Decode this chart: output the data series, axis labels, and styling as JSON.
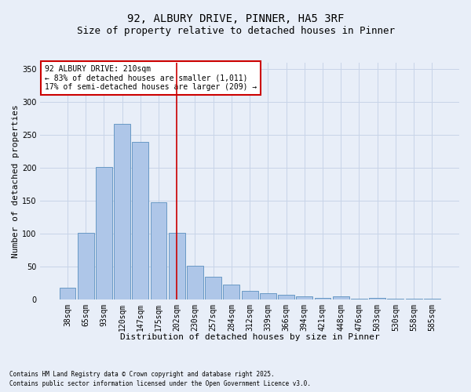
{
  "title1": "92, ALBURY DRIVE, PINNER, HA5 3RF",
  "title2": "Size of property relative to detached houses in Pinner",
  "xlabel": "Distribution of detached houses by size in Pinner",
  "ylabel": "Number of detached properties",
  "categories": [
    "38sqm",
    "65sqm",
    "93sqm",
    "120sqm",
    "147sqm",
    "175sqm",
    "202sqm",
    "230sqm",
    "257sqm",
    "284sqm",
    "312sqm",
    "339sqm",
    "366sqm",
    "394sqm",
    "421sqm",
    "448sqm",
    "476sqm",
    "503sqm",
    "530sqm",
    "558sqm",
    "585sqm"
  ],
  "values": [
    18,
    101,
    201,
    267,
    240,
    148,
    101,
    51,
    35,
    23,
    13,
    10,
    7,
    5,
    2,
    5,
    1,
    2,
    1,
    1,
    1
  ],
  "bar_color": "#aec6e8",
  "bar_edge_color": "#5a8fbf",
  "vline_x": 6,
  "vline_color": "#cc0000",
  "annotation_text": "92 ALBURY DRIVE: 210sqm\n← 83% of detached houses are smaller (1,011)\n17% of semi-detached houses are larger (209) →",
  "annotation_box_color": "#ffffff",
  "annotation_box_edge": "#cc0000",
  "ylim": [
    0,
    360
  ],
  "yticks": [
    0,
    50,
    100,
    150,
    200,
    250,
    300,
    350
  ],
  "grid_color": "#c8d4e8",
  "background_color": "#e8eef8",
  "footer1": "Contains HM Land Registry data © Crown copyright and database right 2025.",
  "footer2": "Contains public sector information licensed under the Open Government Licence v3.0.",
  "title_fontsize": 10,
  "subtitle_fontsize": 9,
  "tick_fontsize": 7,
  "xlabel_fontsize": 8,
  "ylabel_fontsize": 8,
  "footer_fontsize": 5.5,
  "annotation_fontsize": 7
}
